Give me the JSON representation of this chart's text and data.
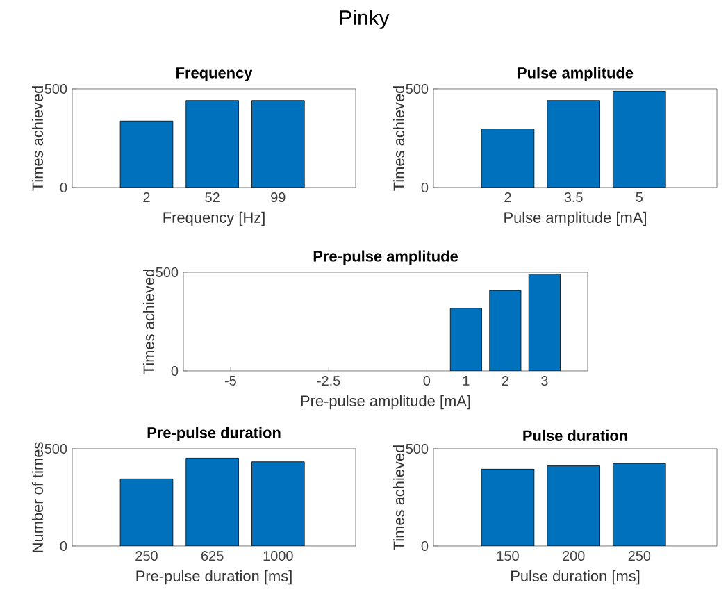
{
  "chart_data": [
    {
      "type": "bar",
      "title": "Frequency",
      "xlabel": "Frequency [Hz]",
      "ylabel": "Times achieved",
      "annotations": [
        "Pinky"
      ],
      "categories": [
        "2",
        "52",
        "99"
      ],
      "values": [
        337,
        441,
        441
      ],
      "color": "#0072bd",
      "ylim": [
        0,
        500
      ],
      "yticks": [
        0,
        500
      ]
    },
    {
      "type": "bar",
      "title": "Pulse amplitude",
      "xlabel": "Pulse amplitude [mA]",
      "ylabel": "Times achieved",
      "categories": [
        "2",
        "3.5",
        "5"
      ],
      "values": [
        297,
        441,
        488
      ],
      "color": "#0072bd",
      "ylim": [
        0,
        500
      ],
      "yticks": [
        0,
        500
      ]
    },
    {
      "type": "bar",
      "title": "Pre-pulse amplitude",
      "xlabel": "Pre-pulse amplitude [mA]",
      "ylabel": "Times achieved",
      "x": [
        1,
        2,
        3
      ],
      "values": [
        318,
        408,
        491
      ],
      "color": "#0072bd",
      "xlim": [
        -6.2,
        4.1
      ],
      "xticks": [
        -5,
        -2.5,
        0,
        1,
        2,
        3
      ],
      "ylim": [
        0,
        500
      ],
      "yticks": [
        0,
        500
      ]
    },
    {
      "type": "bar",
      "title": "Pre-pulse duration",
      "xlabel": "Pre-pulse duration [ms]",
      "ylabel": "Number of times",
      "categories": [
        "250",
        "625",
        "1000"
      ],
      "values": [
        345,
        452,
        433
      ],
      "color": "#0072bd",
      "ylim": [
        0,
        500
      ],
      "yticks": [
        0,
        500
      ]
    },
    {
      "type": "bar",
      "title": "Pulse duration",
      "xlabel": "Pulse duration [ms]",
      "ylabel": "Times achieved",
      "categories": [
        "150",
        "200",
        "250"
      ],
      "values": [
        395,
        412,
        424
      ],
      "color": "#0072bd",
      "ylim": [
        0,
        500
      ],
      "yticks": [
        0,
        500
      ]
    }
  ]
}
